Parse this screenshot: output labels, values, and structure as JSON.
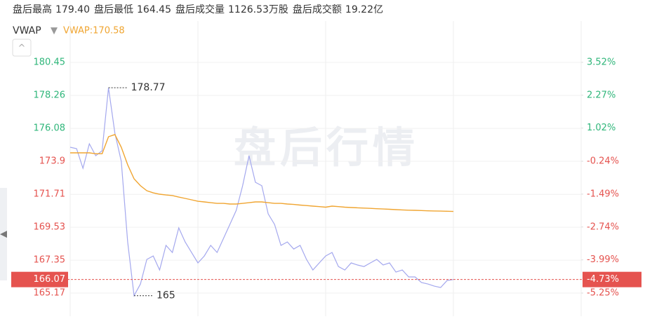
{
  "header": {
    "items": [
      {
        "label": "盘后最高",
        "value": "179.40"
      },
      {
        "label": "盘后最低",
        "value": "164.45"
      },
      {
        "label": "盘后成交量",
        "value": "1126.53万股"
      },
      {
        "label": "盘后成交额",
        "value": "19.22亿"
      }
    ],
    "indicator": "VWAP",
    "indicator_value": "VWAP:170.58"
  },
  "chart_data": {
    "type": "line",
    "watermark": "盘后行情",
    "series": [
      {
        "name": "price",
        "color": "#a4a8ee",
        "values": [
          174.83,
          174.74,
          173.44,
          175.06,
          174.27,
          174.6,
          178.77,
          175.76,
          173.9,
          168.56,
          165.0,
          165.77,
          167.4,
          167.63,
          166.7,
          168.33,
          167.86,
          169.49,
          168.56,
          167.86,
          167.17,
          167.63,
          168.33,
          167.86,
          168.79,
          169.72,
          170.65,
          172.28,
          174.27,
          172.51,
          172.28,
          170.42,
          169.72,
          168.33,
          168.56,
          168.09,
          168.33,
          167.4,
          166.7,
          167.17,
          167.63,
          167.86,
          166.93,
          166.7,
          167.17,
          167.03,
          166.93,
          167.17,
          167.4,
          167.03,
          167.17,
          166.56,
          166.7,
          166.24,
          166.24,
          165.87,
          165.77,
          165.63,
          165.54,
          166.0,
          166.07,
          null,
          null,
          null,
          null,
          null,
          null,
          null,
          null,
          null,
          null,
          null,
          null,
          null,
          null,
          null,
          null,
          null,
          null,
          null,
          null
        ]
      },
      {
        "name": "VWAP",
        "color": "#f0a531",
        "values": [
          174.46,
          174.46,
          174.46,
          174.46,
          174.4,
          174.4,
          175.53,
          175.67,
          174.83,
          173.67,
          172.74,
          172.28,
          171.95,
          171.81,
          171.72,
          171.67,
          171.63,
          171.53,
          171.44,
          171.35,
          171.25,
          171.21,
          171.16,
          171.11,
          171.11,
          171.07,
          171.07,
          171.11,
          171.16,
          171.21,
          171.21,
          171.16,
          171.11,
          171.11,
          171.07,
          171.04,
          171.0,
          170.97,
          170.93,
          170.9,
          170.86,
          170.93,
          170.9,
          170.86,
          170.84,
          170.82,
          170.8,
          170.78,
          170.76,
          170.74,
          170.72,
          170.7,
          170.68,
          170.66,
          170.65,
          170.64,
          170.62,
          170.61,
          170.6,
          170.59,
          170.58,
          null,
          null,
          null,
          null,
          null,
          null,
          null,
          null,
          null,
          null,
          null,
          null,
          null,
          null,
          null,
          null,
          null,
          null,
          null,
          null
        ]
      }
    ],
    "ylim": [
      163.64,
      183.19
    ],
    "yticks": [
      180.45,
      178.26,
      176.08,
      173.9,
      171.71,
      169.53,
      167.35,
      165.17
    ],
    "y2lim": [
      -6.13,
      5.09
    ],
    "y2ticks": [
      {
        "value": 3.52,
        "label": "3.52%"
      },
      {
        "value": 2.27,
        "label": "2.27%"
      },
      {
        "value": 1.02,
        "label": "1.02%"
      },
      {
        "value": -0.24,
        "label": "-0.24%"
      },
      {
        "value": -1.49,
        "label": "-1.49%"
      },
      {
        "value": -2.74,
        "label": "-2.74%"
      },
      {
        "value": -3.99,
        "label": "-3.99%"
      },
      {
        "value": -5.25,
        "label": "-5.25%"
      }
    ],
    "up_color": "#2fb67a",
    "down_color": "#e5534f",
    "current": {
      "y": 166.07,
      "y2": {
        "value": -4.73,
        "label": "-4.73%"
      }
    },
    "annotations": [
      6,
      10
    ],
    "grid": true
  }
}
